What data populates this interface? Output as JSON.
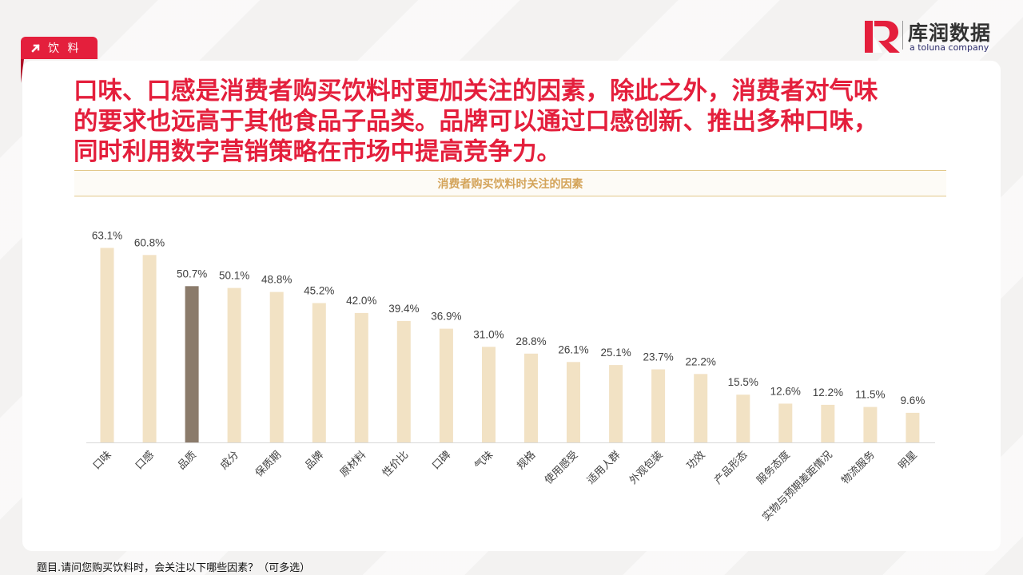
{
  "header": {
    "tag_label": "饮 料",
    "logo": {
      "brand": "库润数据",
      "sub": "a toluna company",
      "mark_color": "#e41f3c"
    }
  },
  "headline": "口味、口感是消费者购买饮料时更加关注的因素，除此之外，消费者对气味\n的要求也远高于其他食品子品类。品牌可以通过口感创新、推出多种口味，\n同时利用数字营销策略在市场中提高竞争力。",
  "footnote": "题目.请问您购买饮料时，会关注以下哪些因素？（可多选）",
  "colors": {
    "accent": "#e41f3c",
    "bar": "#f2e2c4",
    "bar_highlight": "#8b7b6b",
    "title_gold": "#d4a45a"
  },
  "chart_data": {
    "type": "bar",
    "title": "消费者购买饮料时关注的因素",
    "categories": [
      "口味",
      "口感",
      "品质",
      "成分",
      "保质期",
      "品牌",
      "原材料",
      "性价比",
      "口碑",
      "气味",
      "规格",
      "使用感受",
      "适用人群",
      "外观包装",
      "功效",
      "产品形态",
      "服务态度",
      "实物与预期差距情况",
      "物流服务",
      "明星"
    ],
    "values": [
      63.1,
      60.8,
      50.7,
      50.1,
      48.8,
      45.2,
      42.0,
      39.4,
      36.9,
      31.0,
      28.8,
      26.1,
      25.1,
      23.7,
      22.2,
      15.5,
      12.6,
      12.2,
      11.5,
      9.6
    ],
    "value_labels": [
      "63.1%",
      "60.8%",
      "50.7%",
      "50.1%",
      "48.8%",
      "45.2%",
      "42.0%",
      "39.4%",
      "36.9%",
      "31.0%",
      "28.8%",
      "26.1%",
      "25.1%",
      "23.7%",
      "22.2%",
      "15.5%",
      "12.6%",
      "12.2%",
      "11.5%",
      "9.6%"
    ],
    "highlight_index": 2,
    "ylim": [
      0,
      70
    ],
    "grid": false,
    "xlabel": "",
    "ylabel": ""
  }
}
